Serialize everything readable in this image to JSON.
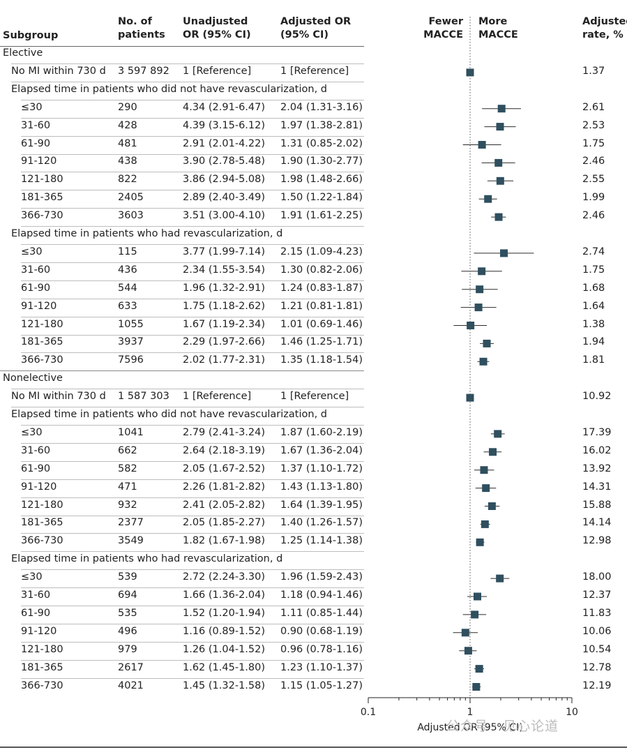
{
  "headers": {
    "subgroup": "Subgroup",
    "patients": [
      "No. of",
      "patients"
    ],
    "unadj": [
      "Unadjusted",
      "OR (95% CI)"
    ],
    "adj": [
      "Adjusted OR",
      "(95% CI)"
    ],
    "fewer": [
      "Fewer",
      "MACCE"
    ],
    "more": [
      "More",
      "MACCE"
    ],
    "rate": [
      "Adjusted",
      "rate, %"
    ]
  },
  "watermark": "公众号 · 见心论道",
  "chart_data": {
    "type": "forest",
    "xlabel": "Adjusted OR (95% CI)",
    "xscale": "log",
    "xlim": [
      0.1,
      10
    ],
    "xticks": [
      "0.1",
      "1",
      "10"
    ],
    "reference_line": 1,
    "rows": [
      {
        "kind": "section",
        "label": "Elective"
      },
      {
        "kind": "row",
        "label": "No MI within 730 d",
        "n": "3 597 892",
        "unadj": "1 [Reference]",
        "adj": "1 [Reference]",
        "or": 1,
        "lo": 1,
        "hi": 1,
        "rate": "1.37",
        "ref": true
      },
      {
        "kind": "sub",
        "label": "Elapsed time in patients who did not have revascularization, d"
      },
      {
        "kind": "row",
        "label": "≤30",
        "n": "290",
        "unadj": "4.34 (2.91-6.47)",
        "adj": "2.04 (1.31-3.16)",
        "or": 2.04,
        "lo": 1.31,
        "hi": 3.16,
        "rate": "2.61"
      },
      {
        "kind": "row",
        "label": "31-60",
        "n": "428",
        "unadj": "4.39 (3.15-6.12)",
        "adj": "1.97 (1.38-2.81)",
        "or": 1.97,
        "lo": 1.38,
        "hi": 2.81,
        "rate": "2.53"
      },
      {
        "kind": "row",
        "label": "61-90",
        "n": "481",
        "unadj": "2.91 (2.01-4.22)",
        "adj": "1.31 (0.85-2.02)",
        "or": 1.31,
        "lo": 0.85,
        "hi": 2.02,
        "rate": "1.75"
      },
      {
        "kind": "row",
        "label": "91-120",
        "n": "438",
        "unadj": "3.90 (2.78-5.48)",
        "adj": "1.90 (1.30-2.77)",
        "or": 1.9,
        "lo": 1.3,
        "hi": 2.77,
        "rate": "2.46"
      },
      {
        "kind": "row",
        "label": "121-180",
        "n": "822",
        "unadj": "3.86 (2.94-5.08)",
        "adj": "1.98 (1.48-2.66)",
        "or": 1.98,
        "lo": 1.48,
        "hi": 2.66,
        "rate": "2.55"
      },
      {
        "kind": "row",
        "label": "181-365",
        "n": "2405",
        "unadj": "2.89 (2.40-3.49)",
        "adj": "1.50 (1.22-1.84)",
        "or": 1.5,
        "lo": 1.22,
        "hi": 1.84,
        "rate": "1.99"
      },
      {
        "kind": "row",
        "label": "366-730",
        "n": "3603",
        "unadj": "3.51 (3.00-4.10)",
        "adj": "1.91 (1.61-2.25)",
        "or": 1.91,
        "lo": 1.61,
        "hi": 2.25,
        "rate": "2.46"
      },
      {
        "kind": "sub",
        "label": "Elapsed time in patients who had revascularization, d"
      },
      {
        "kind": "row",
        "label": "≤30",
        "n": "115",
        "unadj": "3.77 (1.99-7.14)",
        "adj": "2.15 (1.09-4.23)",
        "or": 2.15,
        "lo": 1.09,
        "hi": 4.23,
        "rate": "2.74"
      },
      {
        "kind": "row",
        "label": "31-60",
        "n": "436",
        "unadj": "2.34 (1.55-3.54)",
        "adj": "1.30 (0.82-2.06)",
        "or": 1.3,
        "lo": 0.82,
        "hi": 2.06,
        "rate": "1.75"
      },
      {
        "kind": "row",
        "label": "61-90",
        "n": "544",
        "unadj": "1.96 (1.32-2.91)",
        "adj": "1.24 (0.83-1.87)",
        "or": 1.24,
        "lo": 0.83,
        "hi": 1.87,
        "rate": "1.68"
      },
      {
        "kind": "row",
        "label": "91-120",
        "n": "633",
        "unadj": "1.75 (1.18-2.62)",
        "adj": "1.21 (0.81-1.81)",
        "or": 1.21,
        "lo": 0.81,
        "hi": 1.81,
        "rate": "1.64"
      },
      {
        "kind": "row",
        "label": "121-180",
        "n": "1055",
        "unadj": "1.67 (1.19-2.34)",
        "adj": "1.01 (0.69-1.46)",
        "or": 1.01,
        "lo": 0.69,
        "hi": 1.46,
        "rate": "1.38"
      },
      {
        "kind": "row",
        "label": "181-365",
        "n": "3937",
        "unadj": "2.29 (1.97-2.66)",
        "adj": "1.46 (1.25-1.71)",
        "or": 1.46,
        "lo": 1.25,
        "hi": 1.71,
        "rate": "1.94"
      },
      {
        "kind": "row",
        "label": "366-730",
        "n": "7596",
        "unadj": "2.02 (1.77-2.31)",
        "adj": "1.35 (1.18-1.54)",
        "or": 1.35,
        "lo": 1.18,
        "hi": 1.54,
        "rate": "1.81"
      },
      {
        "kind": "section",
        "label": "Nonelective"
      },
      {
        "kind": "row",
        "label": "No MI within 730 d",
        "n": "1 587 303",
        "unadj": "1 [Reference]",
        "adj": "1 [Reference]",
        "or": 1,
        "lo": 1,
        "hi": 1,
        "rate": "10.92",
        "ref": true
      },
      {
        "kind": "sub",
        "label": "Elapsed time in patients who did not have revascularization, d"
      },
      {
        "kind": "row",
        "label": "≤30",
        "n": "1041",
        "unadj": "2.79 (2.41-3.24)",
        "adj": "1.87 (1.60-2.19)",
        "or": 1.87,
        "lo": 1.6,
        "hi": 2.19,
        "rate": "17.39"
      },
      {
        "kind": "row",
        "label": "31-60",
        "n": "662",
        "unadj": "2.64 (2.18-3.19)",
        "adj": "1.67 (1.36-2.04)",
        "or": 1.67,
        "lo": 1.36,
        "hi": 2.04,
        "rate": "16.02"
      },
      {
        "kind": "row",
        "label": "61-90",
        "n": "582",
        "unadj": "2.05 (1.67-2.52)",
        "adj": "1.37 (1.10-1.72)",
        "or": 1.37,
        "lo": 1.1,
        "hi": 1.72,
        "rate": "13.92"
      },
      {
        "kind": "row",
        "label": "91-120",
        "n": "471",
        "unadj": "2.26 (1.81-2.82)",
        "adj": "1.43 (1.13-1.80)",
        "or": 1.43,
        "lo": 1.13,
        "hi": 1.8,
        "rate": "14.31"
      },
      {
        "kind": "row",
        "label": "121-180",
        "n": "932",
        "unadj": "2.41 (2.05-2.82)",
        "adj": "1.64 (1.39-1.95)",
        "or": 1.64,
        "lo": 1.39,
        "hi": 1.95,
        "rate": "15.88"
      },
      {
        "kind": "row",
        "label": "181-365",
        "n": "2377",
        "unadj": "2.05 (1.85-2.27)",
        "adj": "1.40 (1.26-1.57)",
        "or": 1.4,
        "lo": 1.26,
        "hi": 1.57,
        "rate": "14.14"
      },
      {
        "kind": "row",
        "label": "366-730",
        "n": "3549",
        "unadj": "1.82 (1.67-1.98)",
        "adj": "1.25 (1.14-1.38)",
        "or": 1.25,
        "lo": 1.14,
        "hi": 1.38,
        "rate": "12.98"
      },
      {
        "kind": "sub",
        "label": "Elapsed time in patients who had revascularization, d"
      },
      {
        "kind": "row",
        "label": "≤30",
        "n": "539",
        "unadj": "2.72 (2.24-3.30)",
        "adj": "1.96 (1.59-2.43)",
        "or": 1.96,
        "lo": 1.59,
        "hi": 2.43,
        "rate": "18.00"
      },
      {
        "kind": "row",
        "label": "31-60",
        "n": "694",
        "unadj": "1.66 (1.36-2.04)",
        "adj": "1.18 (0.94-1.46)",
        "or": 1.18,
        "lo": 0.94,
        "hi": 1.46,
        "rate": "12.37"
      },
      {
        "kind": "row",
        "label": "61-90",
        "n": "535",
        "unadj": "1.52 (1.20-1.94)",
        "adj": "1.11 (0.85-1.44)",
        "or": 1.11,
        "lo": 0.85,
        "hi": 1.44,
        "rate": "11.83"
      },
      {
        "kind": "row",
        "label": "91-120",
        "n": "496",
        "unadj": "1.16 (0.89-1.52)",
        "adj": "0.90 (0.68-1.19)",
        "or": 0.9,
        "lo": 0.68,
        "hi": 1.19,
        "rate": "10.06"
      },
      {
        "kind": "row",
        "label": "121-180",
        "n": "979",
        "unadj": "1.26 (1.04-1.52)",
        "adj": "0.96 (0.78-1.16)",
        "or": 0.96,
        "lo": 0.78,
        "hi": 1.16,
        "rate": "10.54"
      },
      {
        "kind": "row",
        "label": "181-365",
        "n": "2617",
        "unadj": "1.62 (1.45-1.80)",
        "adj": "1.23 (1.10-1.37)",
        "or": 1.23,
        "lo": 1.1,
        "hi": 1.37,
        "rate": "12.78"
      },
      {
        "kind": "row",
        "label": "366-730",
        "n": "4021",
        "unadj": "1.45 (1.32-1.58)",
        "adj": "1.15 (1.05-1.27)",
        "or": 1.15,
        "lo": 1.05,
        "hi": 1.27,
        "rate": "12.19"
      }
    ]
  }
}
